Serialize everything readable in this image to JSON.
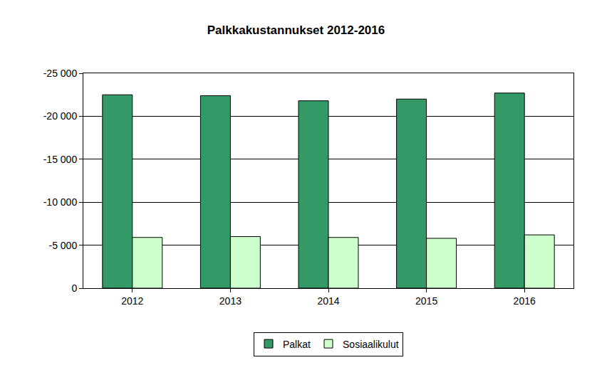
{
  "chart_data": {
    "type": "bar",
    "title": "Palkkakustannukset 2012-2016",
    "categories": [
      "2012",
      "2013",
      "2014",
      "2015",
      "2016"
    ],
    "series": [
      {
        "name": "Palkat",
        "color": "#339966",
        "values": [
          -22500,
          -22400,
          -21800,
          -22000,
          -22700
        ]
      },
      {
        "name": "Sosiaalikulut",
        "color": "#ccffcc",
        "values": [
          -5900,
          -6000,
          -5900,
          -5800,
          -6200
        ]
      }
    ],
    "ylim": [
      0,
      -25000
    ],
    "yticks": [
      0,
      {
        "value": -5000,
        "label": "-5 000"
      },
      {
        "value": -10000,
        "label": "-10 000"
      },
      {
        "value": -15000,
        "label": "-15 000"
      },
      {
        "value": -20000,
        "label": "-20 000"
      },
      {
        "value": -25000,
        "label": "-25 000"
      }
    ],
    "grid": true,
    "legend": "bottom"
  }
}
